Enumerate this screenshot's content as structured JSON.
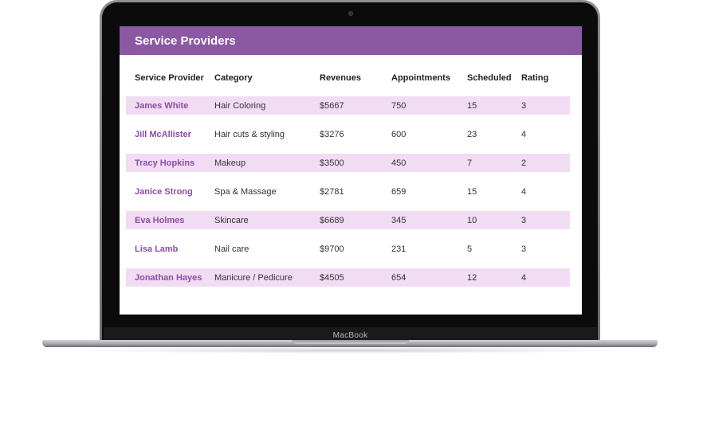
{
  "device": {
    "brand_label": "MacBook"
  },
  "app": {
    "title": "Service Providers"
  },
  "table": {
    "headers": [
      "Service Provider",
      "Category",
      "Revenues",
      "Appointments",
      "Scheduled",
      "Rating"
    ],
    "rows": [
      {
        "provider": "James White",
        "category": "Hair Coloring",
        "revenues": "$5667",
        "appointments": "750",
        "scheduled": "15",
        "rating": "3"
      },
      {
        "provider": "Jill McAllister",
        "category": "Hair cuts & styling",
        "revenues": "$3276",
        "appointments": "600",
        "scheduled": "23",
        "rating": "4"
      },
      {
        "provider": "Tracy Hopkins",
        "category": "Makeup",
        "revenues": "$3500",
        "appointments": "450",
        "scheduled": "7",
        "rating": "2"
      },
      {
        "provider": "Janice Strong",
        "category": "Spa & Massage",
        "revenues": "$2781",
        "appointments": "659",
        "scheduled": "15",
        "rating": "4"
      },
      {
        "provider": "Eva Holmes",
        "category": "Skincare",
        "revenues": "$6689",
        "appointments": "345",
        "scheduled": "10",
        "rating": "3"
      },
      {
        "provider": "Lisa Lamb",
        "category": "Nail care",
        "revenues": "$9700",
        "appointments": "231",
        "scheduled": "5",
        "rating": "3"
      },
      {
        "provider": "Jonathan Hayes",
        "category": "Manicure / Pedicure",
        "revenues": "$4505",
        "appointments": "654",
        "scheduled": "12",
        "rating": "4"
      }
    ]
  },
  "colors": {
    "header_bar": "#8b58a3",
    "row_stripe": "#f1dcf3",
    "provider_name": "#8b4ea4"
  }
}
